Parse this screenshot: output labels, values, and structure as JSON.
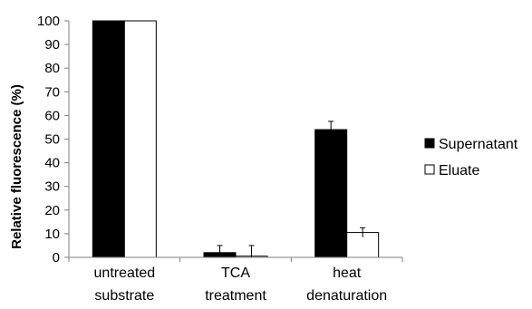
{
  "chart_data": {
    "type": "bar",
    "title": "",
    "xlabel": "",
    "ylabel": "Relative fluorescence (%)",
    "ylim": [
      0,
      100
    ],
    "yticks": [
      0,
      10,
      20,
      30,
      40,
      50,
      60,
      70,
      80,
      90,
      100
    ],
    "categories": [
      [
        "untreated",
        "substrate"
      ],
      [
        "TCA",
        "treatment"
      ],
      [
        "heat",
        "denaturation"
      ]
    ],
    "series": [
      {
        "name": "Supernatant",
        "values": [
          100,
          2,
          54
        ],
        "errors": [
          0,
          3,
          3.5
        ],
        "fill": "#000000"
      },
      {
        "name": "Eluate",
        "values": [
          100,
          0.5,
          10.5
        ],
        "errors": [
          0,
          4.5,
          2
        ],
        "fill": "#ffffff"
      }
    ],
    "legend_position": "right",
    "grid": false
  }
}
